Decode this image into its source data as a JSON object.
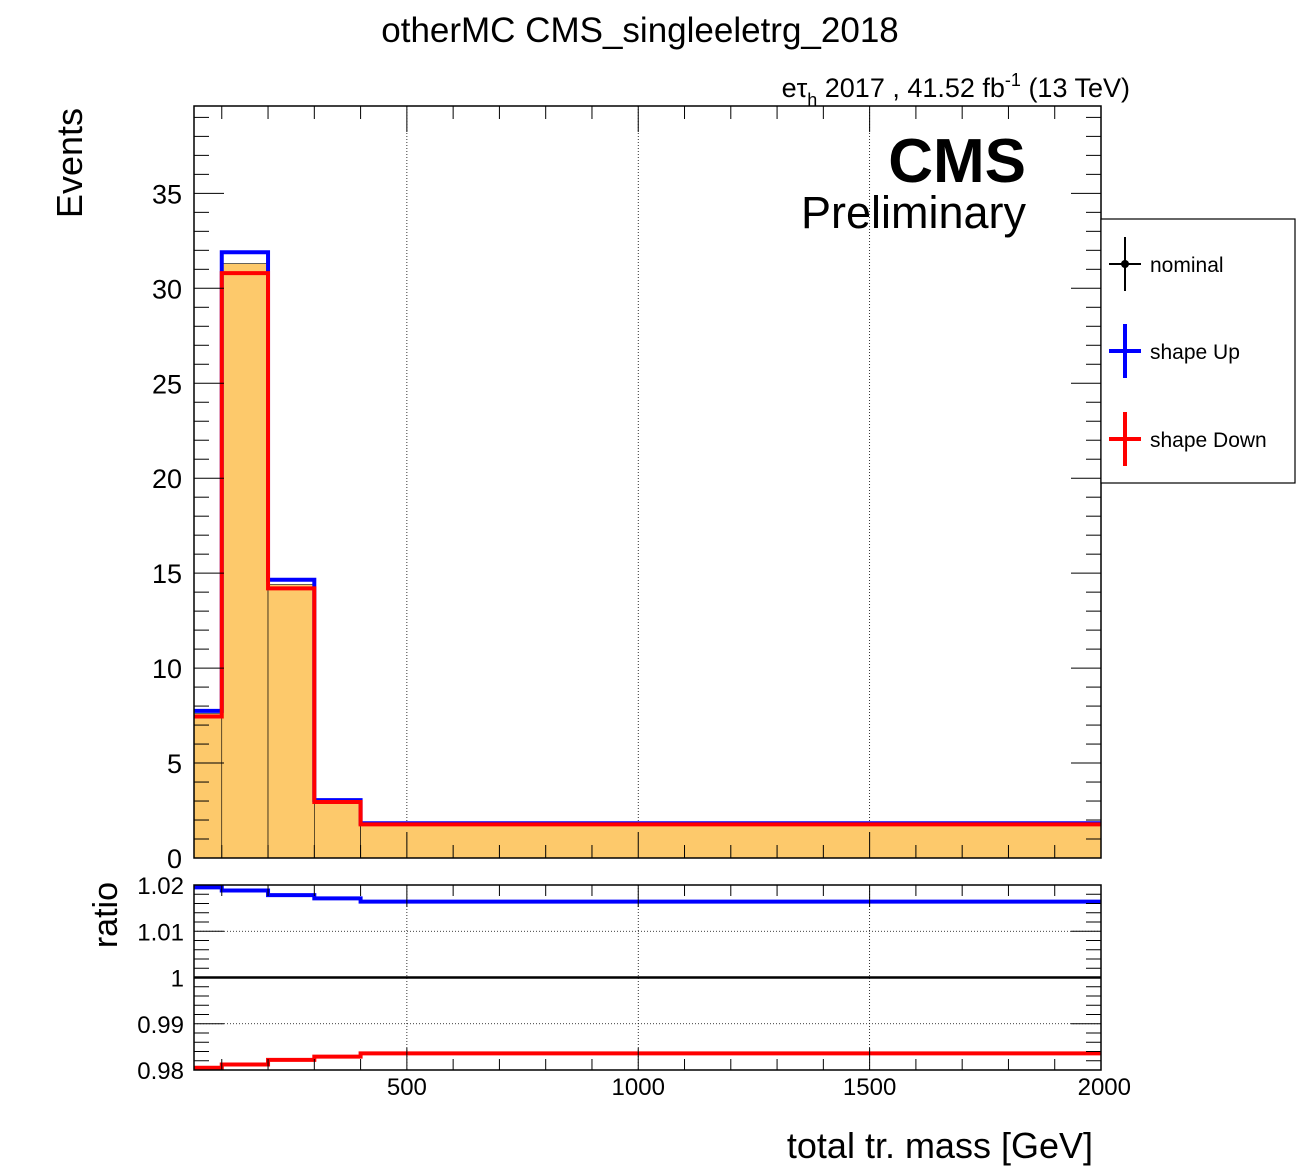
{
  "chart_data": [
    {
      "type": "histogram",
      "title": "otherMC CMS_singleeletrg_2018",
      "lumi_label": {
        "channel_main": "eτ",
        "channel_sub": "h",
        "text": " 2017 , 41.52 fb",
        "exponent": "-1",
        "energy": " (13 TeV)"
      },
      "cms_label": "CMS",
      "cms_sublabel": "Preliminary",
      "ylabel": "Events",
      "xlim": [
        40,
        2000
      ],
      "ylim": [
        0,
        39.6
      ],
      "yticks": [
        0,
        5,
        10,
        15,
        20,
        25,
        30,
        35
      ],
      "ytick_labels": [
        "0",
        "5",
        "10",
        "15",
        "20",
        "25",
        "30",
        "35"
      ],
      "bin_edges": [
        40,
        100,
        200,
        300,
        400,
        2000
      ],
      "series": [
        {
          "name": "nominal",
          "values": [
            7.6,
            31.3,
            14.4,
            3.0,
            1.8
          ],
          "color": "#fdc96b"
        },
        {
          "name": "shape Up",
          "values": [
            7.75,
            31.9,
            14.65,
            3.05,
            1.83
          ],
          "color": "#0000ff"
        },
        {
          "name": "shape Down",
          "values": [
            7.45,
            30.8,
            14.2,
            2.95,
            1.77
          ],
          "color": "#ff0000"
        }
      ],
      "grid_x": [
        500,
        1000,
        1500
      ],
      "legend": {
        "position": "right-outside"
      }
    },
    {
      "type": "line",
      "ylabel": "ratio",
      "xlabel": "total tr. mass [GeV]",
      "xlim": [
        40,
        2000
      ],
      "ylim": [
        0.98,
        1.02
      ],
      "xticks": [
        500,
        1000,
        1500,
        2000
      ],
      "xtick_labels": [
        "500",
        "1000",
        "1500",
        "2000"
      ],
      "yticks": [
        0.98,
        0.99,
        1,
        1.01,
        1.02
      ],
      "ytick_labels": [
        "0.98",
        "0.99",
        "1",
        "1.01",
        "1.02"
      ],
      "bin_edges": [
        40,
        100,
        200,
        300,
        400,
        2000
      ],
      "series": [
        {
          "name": "shape Up",
          "values": [
            1.0195,
            1.0188,
            1.0178,
            1.0171,
            1.0164
          ],
          "color": "#0000ff"
        },
        {
          "name": "shape Down",
          "values": [
            0.9805,
            0.9812,
            0.9822,
            0.9829,
            0.9836
          ],
          "color": "#ff0000"
        }
      ],
      "reference_line": 1
    }
  ]
}
